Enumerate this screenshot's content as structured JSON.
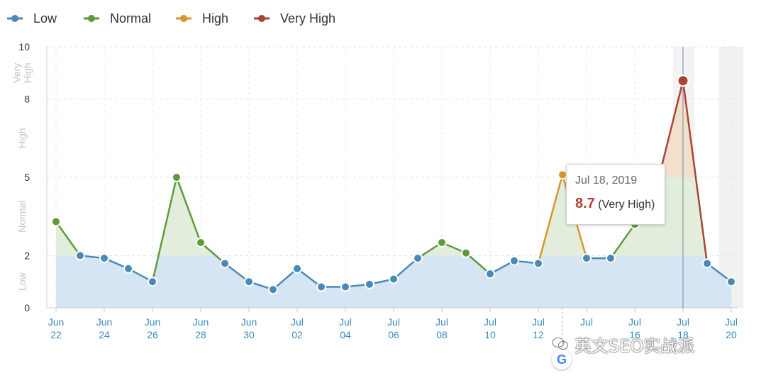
{
  "legend": [
    {
      "label": "Low",
      "color": "#4a8ab9"
    },
    {
      "label": "Normal",
      "color": "#5e9a3c"
    },
    {
      "label": "High",
      "color": "#d3962e"
    },
    {
      "label": "Very High",
      "color": "#a94434"
    }
  ],
  "bands": [
    {
      "label": "Low",
      "from": 0,
      "to": 2
    },
    {
      "label": "Normal",
      "from": 2,
      "to": 5
    },
    {
      "label": "High",
      "from": 5,
      "to": 8
    },
    {
      "label": "Very\nHigh",
      "from": 8,
      "to": 10
    }
  ],
  "chart_data": {
    "type": "line",
    "ylim": [
      0,
      10
    ],
    "yticks": [
      0,
      2,
      5,
      8,
      10
    ],
    "grid": true,
    "x": [
      "Jun 22",
      "Jun 23",
      "Jun 24",
      "Jun 25",
      "Jun 26",
      "Jun 27",
      "Jun 28",
      "Jun 29",
      "Jun 30",
      "Jul 01",
      "Jul 02",
      "Jul 03",
      "Jul 04",
      "Jul 05",
      "Jul 06",
      "Jul 07",
      "Jul 08",
      "Jul 09",
      "Jul 10",
      "Jul 11",
      "Jul 12",
      "Jul 13",
      "Jul 14",
      "Jul 15",
      "Jul 16",
      "Jul 17",
      "Jul 18",
      "Jul 19",
      "Jul 20"
    ],
    "values": [
      3.3,
      2.0,
      1.9,
      1.5,
      1.0,
      5.0,
      2.5,
      1.7,
      1.0,
      0.7,
      1.5,
      0.8,
      0.8,
      0.9,
      1.1,
      1.9,
      2.5,
      2.1,
      1.3,
      1.8,
      1.7,
      5.1,
      1.9,
      1.9,
      3.2,
      5.0,
      8.7,
      1.7,
      1.0
    ],
    "xtick_labels": [
      {
        "index": 0,
        "month": "Jun",
        "day": "22"
      },
      {
        "index": 2,
        "month": "Jun",
        "day": "24"
      },
      {
        "index": 4,
        "month": "Jun",
        "day": "26"
      },
      {
        "index": 6,
        "month": "Jun",
        "day": "28"
      },
      {
        "index": 8,
        "month": "Jun",
        "day": "30"
      },
      {
        "index": 10,
        "month": "Jul",
        "day": "02"
      },
      {
        "index": 12,
        "month": "Jul",
        "day": "04"
      },
      {
        "index": 14,
        "month": "Jul",
        "day": "06"
      },
      {
        "index": 16,
        "month": "Jul",
        "day": "08"
      },
      {
        "index": 18,
        "month": "Jul",
        "day": "10"
      },
      {
        "index": 20,
        "month": "Jul",
        "day": "12"
      },
      {
        "index": 22,
        "month": "Jul",
        "day": ""
      },
      {
        "index": 24,
        "month": "Jul",
        "day": "16"
      },
      {
        "index": 26,
        "month": "Jul",
        "day": "18"
      },
      {
        "index": 28,
        "month": "Jul",
        "day": "20"
      }
    ],
    "highlight_index": 26
  },
  "tooltip": {
    "date": "Jul 18, 2019",
    "value": "8.7",
    "level": "(Very High)"
  },
  "watermark": {
    "text": "英文SEO实战派"
  },
  "google_badge": {
    "letter": "G"
  }
}
